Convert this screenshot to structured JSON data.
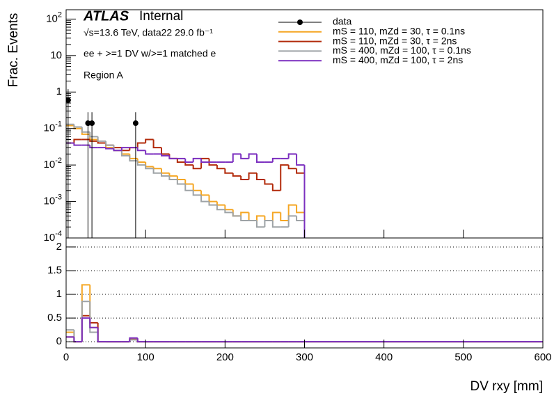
{
  "chart_data": [
    {
      "type": "histogram",
      "ylabel": "Frac. Events",
      "log_y": true,
      "annotations": [
        "ATLAS",
        "Internal",
        "√s=13.6 TeV, data22 29.0 fb⁻¹",
        "ee + >=1 DV w/>=1 matched e",
        "Region A"
      ],
      "xlim": [
        0,
        600
      ],
      "ylim": [
        0.0001,
        180
      ],
      "yticks": [
        {
          "value": 0.0001,
          "label": "10",
          "exponent": "-4"
        },
        {
          "value": 0.001,
          "label": "10",
          "exponent": "-3"
        },
        {
          "value": 0.01,
          "label": "10",
          "exponent": "-2"
        },
        {
          "value": 0.1,
          "label": "10",
          "exponent": "-1"
        },
        1,
        10,
        {
          "value": 100,
          "label": "10",
          "exponent": "2"
        }
      ],
      "legend": "upper right",
      "bins": [
        0,
        10,
        20,
        30,
        40,
        50,
        60,
        70,
        80,
        90,
        100,
        110,
        120,
        130,
        140,
        150,
        160,
        170,
        180,
        190,
        200,
        210,
        220,
        230,
        240,
        250,
        260,
        270,
        280,
        290,
        300,
        600
      ],
      "data": {
        "name": "data",
        "color": "#000000",
        "x": [
          2.5,
          27.5,
          32.5,
          87.5
        ],
        "values": [
          0.6,
          0.14,
          0.14,
          0.14
        ],
        "errors": [
          0.6,
          0.14,
          0.14,
          0.14
        ]
      },
      "series": [
        {
          "name": "mS = 110, mZd = 30, τ = 0.1ns",
          "color": "#f5a623",
          "values": [
            0.12,
            0.1,
            0.07,
            0.05,
            0.04,
            0.03,
            0.025,
            0.02,
            0.015,
            0.012,
            0.009,
            0.008,
            0.006,
            0.005,
            0.004,
            0.003,
            0.002,
            0.0015,
            0.001,
            0.0008,
            0.0006,
            0.0004,
            0.0005,
            0.0003,
            0.0004,
            0.0003,
            0.0005,
            0.0003,
            0.0008,
            0.0005,
            0
          ]
        },
        {
          "name": "mS = 110, mZd = 30, τ = 2ns",
          "color": "#b22a0a",
          "values": [
            0.04,
            0.05,
            0.05,
            0.045,
            0.04,
            0.035,
            0.03,
            0.025,
            0.03,
            0.04,
            0.05,
            0.03,
            0.02,
            0.015,
            0.012,
            0.01,
            0.008,
            0.015,
            0.01,
            0.008,
            0.006,
            0.005,
            0.004,
            0.006,
            0.004,
            0.003,
            0.002,
            0.01,
            0.008,
            0.006,
            0
          ]
        },
        {
          "name": "mS = 400, mZd = 100, τ = 0.1ns",
          "color": "#9ea3a6",
          "values": [
            0.13,
            0.11,
            0.08,
            0.06,
            0.045,
            0.035,
            0.025,
            0.018,
            0.013,
            0.01,
            0.008,
            0.006,
            0.005,
            0.004,
            0.003,
            0.002,
            0.0015,
            0.001,
            0.0008,
            0.0006,
            0.0005,
            0.0004,
            0.0003,
            0.0003,
            0.0002,
            0.0003,
            0.0002,
            0.0002,
            0.0004,
            0.0003,
            0
          ]
        },
        {
          "name": "mS = 400, mZd = 100, τ = 2ns",
          "color": "#7b2fbf",
          "values": [
            0.04,
            0.035,
            0.035,
            0.03,
            0.03,
            0.028,
            0.025,
            0.03,
            0.03,
            0.025,
            0.02,
            0.02,
            0.018,
            0.015,
            0.015,
            0.012,
            0.015,
            0.012,
            0.012,
            0.012,
            0.012,
            0.02,
            0.015,
            0.02,
            0.012,
            0.012,
            0.015,
            0.015,
            0.02,
            0.01,
            0
          ]
        }
      ]
    },
    {
      "type": "histogram",
      "xlabel": "DV rxy [mm]",
      "grid": true,
      "xlim": [
        0,
        600
      ],
      "ylim": [
        -0.13,
        2.19
      ],
      "xticks": [
        0,
        100,
        200,
        300,
        400,
        500,
        600
      ],
      "yticks": [
        0,
        0.5,
        1,
        1.5,
        2
      ],
      "bins": [
        0,
        10,
        20,
        30,
        40,
        50,
        60,
        70,
        80,
        90,
        100,
        110,
        120,
        130,
        140,
        150,
        160,
        170,
        180,
        190,
        200,
        210,
        220,
        230,
        240,
        250,
        260,
        270,
        280,
        290,
        300,
        600
      ],
      "series": [
        {
          "color": "#f5a623",
          "values": [
            0.2,
            0,
            1.2,
            0.3,
            0,
            0,
            0,
            0,
            0.05,
            0,
            0,
            0,
            0,
            0,
            0,
            0,
            0,
            0,
            0,
            0,
            0,
            0,
            0,
            0,
            0,
            0,
            0,
            0,
            0,
            0,
            0
          ]
        },
        {
          "color": "#b22a0a",
          "values": [
            0.1,
            0,
            0.55,
            0.4,
            0,
            0,
            0,
            0,
            0.05,
            0,
            0,
            0,
            0,
            0,
            0,
            0,
            0,
            0,
            0,
            0,
            0,
            0,
            0,
            0,
            0,
            0,
            0,
            0,
            0,
            0,
            0
          ]
        },
        {
          "color": "#9ea3a6",
          "values": [
            0.25,
            0,
            0.85,
            0.2,
            0,
            0,
            0,
            0,
            0.04,
            0,
            0,
            0,
            0,
            0,
            0,
            0,
            0,
            0,
            0,
            0,
            0,
            0,
            0,
            0,
            0,
            0,
            0,
            0,
            0,
            0,
            0
          ]
        },
        {
          "color": "#7b2fbf",
          "values": [
            0.1,
            0,
            0.5,
            0.3,
            0,
            0,
            0,
            0,
            0.08,
            0,
            0,
            0,
            0,
            0,
            0,
            0,
            0,
            0,
            0,
            0,
            0,
            0,
            0,
            0,
            0,
            0,
            0,
            0,
            0,
            0,
            0
          ]
        }
      ]
    }
  ]
}
